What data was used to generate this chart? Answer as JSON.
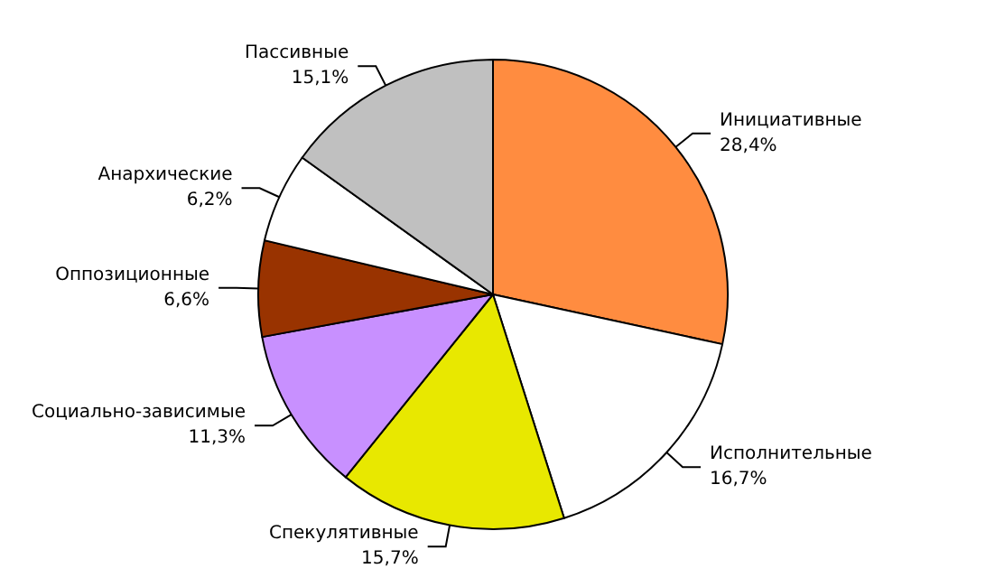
{
  "chart_data": {
    "type": "pie",
    "categories": [
      "Инициативные",
      "Исполнительные",
      "Спекулятивные",
      "Социально-зависимые",
      "Оппозиционные",
      "Анархические",
      "Пассивные"
    ],
    "values": [
      28.4,
      16.7,
      15.7,
      11.3,
      6.6,
      6.2,
      15.1
    ],
    "value_labels": [
      "28,4%",
      "16,7%",
      "15,7%",
      "11,3%",
      "6,6%",
      "6,2%",
      "15,1%"
    ],
    "colors": [
      "#ff8c40",
      "#ffffff",
      "#e8e800",
      "#c890ff",
      "#993300",
      "#ffffff",
      "#c0c0c0"
    ]
  }
}
